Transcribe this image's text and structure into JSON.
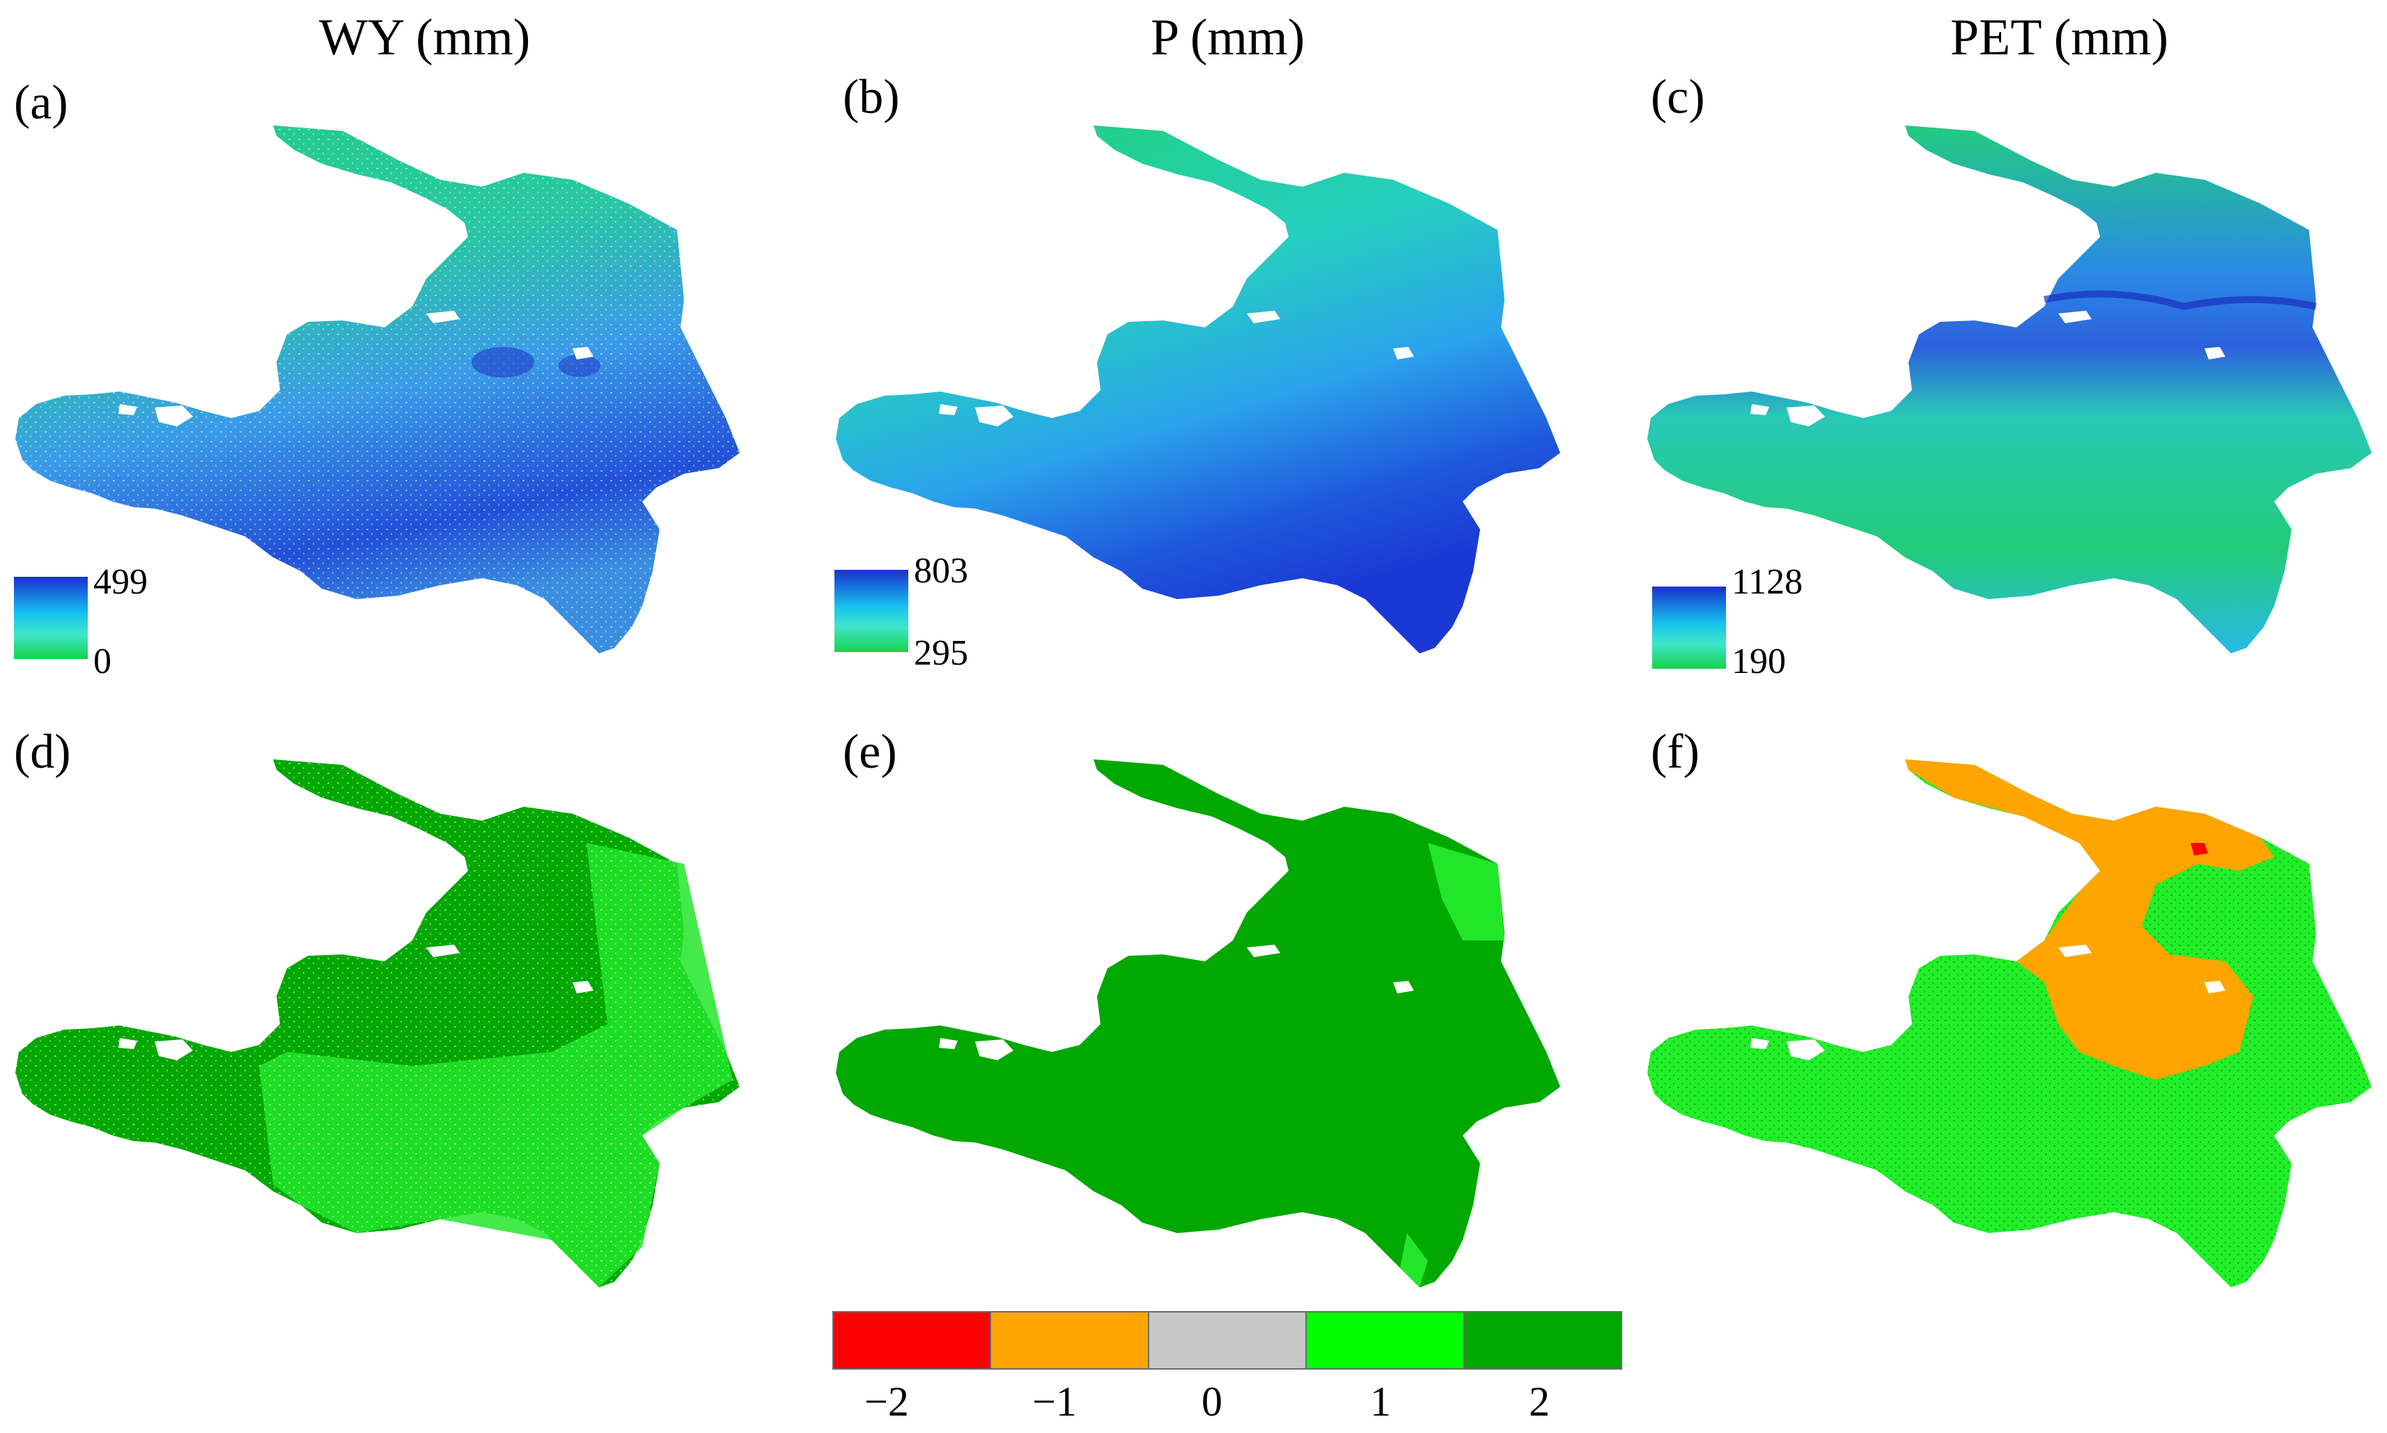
{
  "columns": [
    {
      "title": "WY (mm)"
    },
    {
      "title": "P (mm)"
    },
    {
      "title": "PET (mm)"
    }
  ],
  "panels": [
    {
      "label": "(a)",
      "cbar_max": "499",
      "cbar_min": "0",
      "colors": [
        "#1a2fd0",
        "#10a8e8",
        "#2ee0c0",
        "#16d24a"
      ]
    },
    {
      "label": "(b)",
      "cbar_max": "803",
      "cbar_min": "295",
      "colors": [
        "#1a2fd0",
        "#10a8e8",
        "#2ee0c0",
        "#16d24a"
      ]
    },
    {
      "label": "(c)",
      "cbar_max": "1128",
      "cbar_min": "190",
      "colors": [
        "#1a2fd0",
        "#10a8e8",
        "#2ee0c0",
        "#16d24a"
      ]
    },
    {
      "label": "(d)"
    },
    {
      "label": "(e)"
    },
    {
      "label": "(f)"
    }
  ],
  "legend": {
    "items": [
      {
        "label": "−2",
        "color": "#ff0000"
      },
      {
        "label": "−1",
        "color": "#ffa500"
      },
      {
        "label": "0",
        "color": "#c8c8c8"
      },
      {
        "label": "1",
        "color": "#00ff00"
      },
      {
        "label": "2",
        "color": "#00a800"
      }
    ]
  }
}
